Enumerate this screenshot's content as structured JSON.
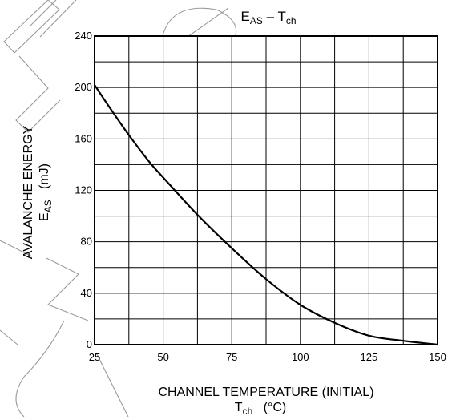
{
  "chart_data": {
    "type": "line",
    "title": {
      "main": "E",
      "main_sub": "AS",
      "sep": " – ",
      "second": "T",
      "second_sub": "ch"
    },
    "xlabel": {
      "line1": "CHANNEL TEMPERATURE (INITIAL)",
      "sym": "T",
      "sym_sub": "ch",
      "unit": "(°C)"
    },
    "ylabel": {
      "line1": "AVALANCHE ENERGY",
      "sym": "E",
      "sym_sub": "AS",
      "unit": "(mJ)"
    },
    "xlim": [
      25,
      150
    ],
    "ylim": [
      0,
      240
    ],
    "x_ticks": [
      25,
      50,
      75,
      100,
      125,
      150
    ],
    "y_ticks": [
      0,
      40,
      80,
      120,
      160,
      200,
      240
    ],
    "x_grid_step": 12.5,
    "y_grid_step": 20,
    "grid": true,
    "series": [
      {
        "x": [
          25,
          30,
          37.5,
          45,
          50,
          62.5,
          75,
          87.5,
          100,
          112.5,
          125,
          137.5,
          150
        ],
        "values": [
          202,
          186,
          163,
          142,
          130,
          101,
          75,
          51,
          31,
          17,
          7,
          3,
          0
        ]
      }
    ]
  }
}
